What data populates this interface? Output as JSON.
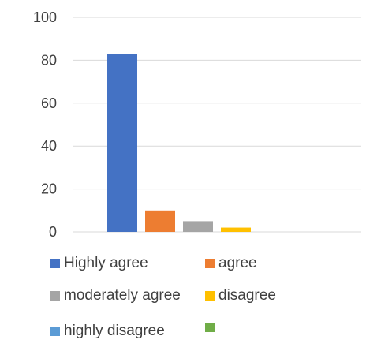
{
  "chart_data": {
    "type": "bar",
    "title": "",
    "xlabel": "",
    "ylabel": "",
    "ylim": [
      0,
      100
    ],
    "yticks": [
      "0",
      "20",
      "40",
      "60",
      "80",
      "100"
    ],
    "grid": true,
    "legend_position": "bottom",
    "series": [
      {
        "name": "Highly agree",
        "value": 83,
        "color": "#4472C4"
      },
      {
        "name": "agree",
        "value": 10,
        "color": "#ED7D31"
      },
      {
        "name": "moderately agree",
        "value": 5,
        "color": "#A5A5A5"
      },
      {
        "name": "disagree",
        "value": 2,
        "color": "#FFC000"
      },
      {
        "name": "highly disagree",
        "value": 0,
        "color": "#5B9BD5"
      },
      {
        "name": "",
        "value": 0,
        "color": "#70AD47"
      }
    ]
  }
}
